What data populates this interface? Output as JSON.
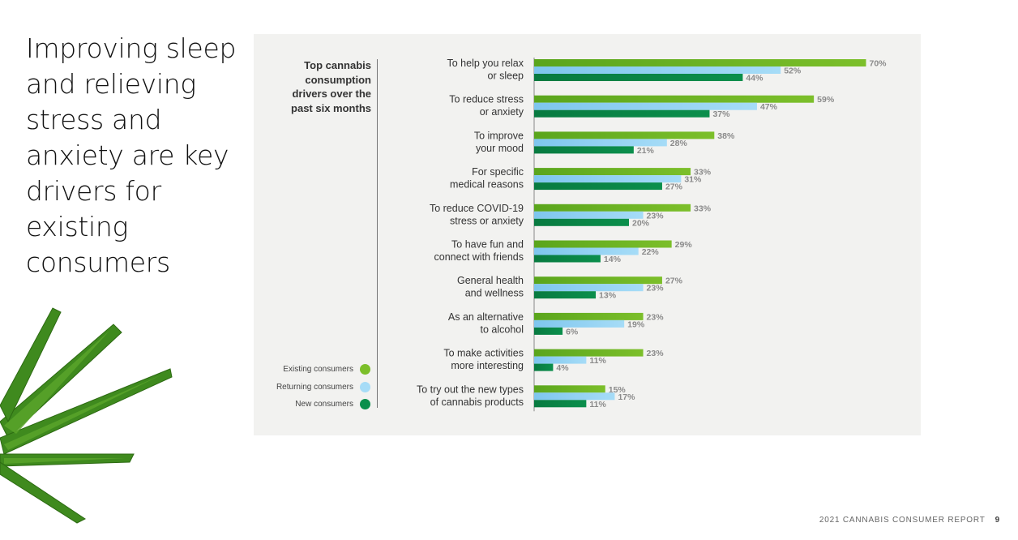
{
  "headline": "Improving sleep and relieving stress and anxiety are key drivers for existing consumers",
  "footer": {
    "report": "2021 CANNABIS CONSUMER REPORT",
    "page": "9"
  },
  "colors": {
    "existing": "#7cbf2a",
    "returning": "#a6dcf7",
    "new": "#0b8f4c"
  },
  "chart_data": {
    "type": "bar",
    "orientation": "horizontal",
    "title": "Top cannabis consumption drivers over the past six months",
    "categories": [
      "To help you relax or sleep",
      "To reduce stress or anxiety",
      "To improve your mood",
      "For specific medical reasons",
      "To reduce COVID-19 stress or anxiety",
      "To have fun and connect with friends",
      "General health and wellness",
      "As an alternative to alcohol",
      "To make activities more interesting",
      "To try out the new types of cannabis products"
    ],
    "category_lines": [
      [
        "To help you relax",
        "or sleep"
      ],
      [
        "To reduce stress",
        "or anxiety"
      ],
      [
        "To improve",
        "your mood"
      ],
      [
        "For specific",
        "medical reasons"
      ],
      [
        "To reduce COVID-19",
        "stress or anxiety"
      ],
      [
        "To have fun and",
        "connect with friends"
      ],
      [
        "General health",
        "and wellness"
      ],
      [
        "As an alternative",
        "to alcohol"
      ],
      [
        "To make activities",
        "more interesting"
      ],
      [
        "To try out the new types",
        "of cannabis products"
      ]
    ],
    "series": [
      {
        "name": "Existing consumers",
        "values": [
          70,
          59,
          38,
          33,
          33,
          29,
          27,
          23,
          23,
          15
        ]
      },
      {
        "name": "Returning consumers",
        "values": [
          52,
          47,
          28,
          31,
          23,
          22,
          23,
          19,
          11,
          17
        ]
      },
      {
        "name": "New consumers",
        "values": [
          44,
          37,
          21,
          27,
          20,
          14,
          13,
          6,
          4,
          11
        ]
      }
    ],
    "value_suffix": "%",
    "legend_position": "bottom-left",
    "grid": false
  }
}
